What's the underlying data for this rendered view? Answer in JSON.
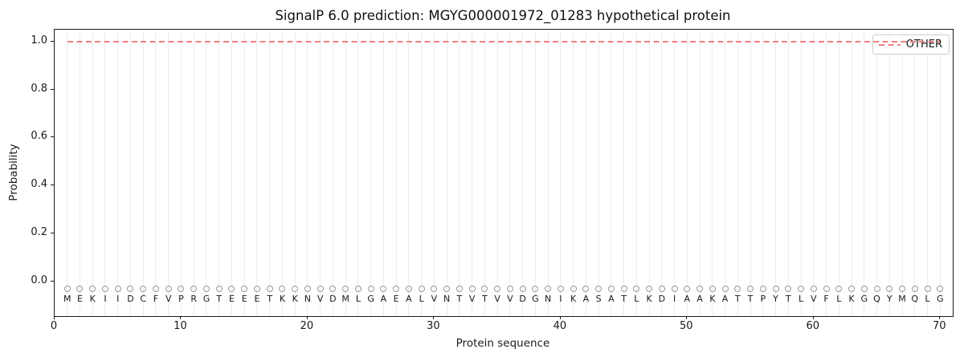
{
  "title": "SignalP 6.0 prediction: MGYG000001972_01283 hypothetical protein",
  "axes": {
    "xlabel": "Protein sequence",
    "ylabel": "Probability",
    "x_tick_labels": [
      "0",
      "10",
      "20",
      "30",
      "40",
      "50",
      "60",
      "70"
    ],
    "x_tick_values": [
      0,
      10,
      20,
      30,
      40,
      50,
      60,
      70
    ],
    "y_tick_labels": [
      "0.0",
      "0.2",
      "0.4",
      "0.6",
      "0.8",
      "1.0"
    ],
    "y_tick_values": [
      0.0,
      0.2,
      0.4,
      0.6,
      0.8,
      1.0
    ],
    "xlim": [
      0,
      71
    ],
    "ylim": [
      -0.145,
      1.05
    ],
    "grid": "vertical gridline at every residue position"
  },
  "legend": {
    "position": "upper right",
    "entries": [
      {
        "label": "OTHER",
        "color": "#f08080",
        "linestyle": "dashed"
      }
    ]
  },
  "sequence": "MEKIIDCFVPRGTEEETKKNVDMLGAEALVNTVTVVDGNIKASATLKDIAAKATTPYTLVFLKGQYMQLG",
  "colors": {
    "other_line": "#f08080",
    "gridline": "#ececec",
    "marker_edge": "#999999",
    "text": "#1a1a1a",
    "spine": "#1a1a1a",
    "legend_border": "#cccccc"
  },
  "marker": {
    "shape": "open-circle",
    "y_value": -0.03,
    "per_residue": true
  },
  "chart_data": {
    "type": "line",
    "title": "SignalP 6.0 prediction: MGYG000001972_01283 hypothetical protein",
    "xlabel": "Protein sequence",
    "ylabel": "Probability",
    "xlim": [
      0,
      71
    ],
    "ylim": [
      -0.145,
      1.05
    ],
    "grid": "vertical per-residue gridlines",
    "legend_position": "upper right",
    "sequence": "MEKIIDCFVPRGTEEETKKNVDMLGAEALVNTVTVVDGNIKASATLKDIAAKATTPYTLVFLKGQYMQLG",
    "series": [
      {
        "name": "OTHER",
        "color": "#f08080",
        "linestyle": "dashed",
        "x": [
          1,
          2,
          3,
          4,
          5,
          6,
          7,
          8,
          9,
          10,
          11,
          12,
          13,
          14,
          15,
          16,
          17,
          18,
          19,
          20,
          21,
          22,
          23,
          24,
          25,
          26,
          27,
          28,
          29,
          30,
          31,
          32,
          33,
          34,
          35,
          36,
          37,
          38,
          39,
          40,
          41,
          42,
          43,
          44,
          45,
          46,
          47,
          48,
          49,
          50,
          51,
          52,
          53,
          54,
          55,
          56,
          57,
          58,
          59,
          60,
          61,
          62,
          63,
          64,
          65,
          66,
          67,
          68,
          69,
          70
        ],
        "y": [
          1.0,
          1.0,
          1.0,
          1.0,
          1.0,
          1.0,
          1.0,
          1.0,
          1.0,
          1.0,
          1.0,
          1.0,
          1.0,
          1.0,
          1.0,
          1.0,
          1.0,
          1.0,
          1.0,
          1.0,
          1.0,
          1.0,
          1.0,
          1.0,
          1.0,
          1.0,
          1.0,
          1.0,
          1.0,
          1.0,
          1.0,
          1.0,
          1.0,
          1.0,
          1.0,
          1.0,
          1.0,
          1.0,
          1.0,
          1.0,
          1.0,
          1.0,
          1.0,
          1.0,
          1.0,
          1.0,
          1.0,
          1.0,
          1.0,
          1.0,
          1.0,
          1.0,
          1.0,
          1.0,
          1.0,
          1.0,
          1.0,
          1.0,
          1.0,
          1.0,
          1.0,
          1.0,
          1.0,
          1.0,
          1.0,
          1.0,
          1.0,
          1.0,
          1.0,
          1.0
        ]
      }
    ]
  }
}
